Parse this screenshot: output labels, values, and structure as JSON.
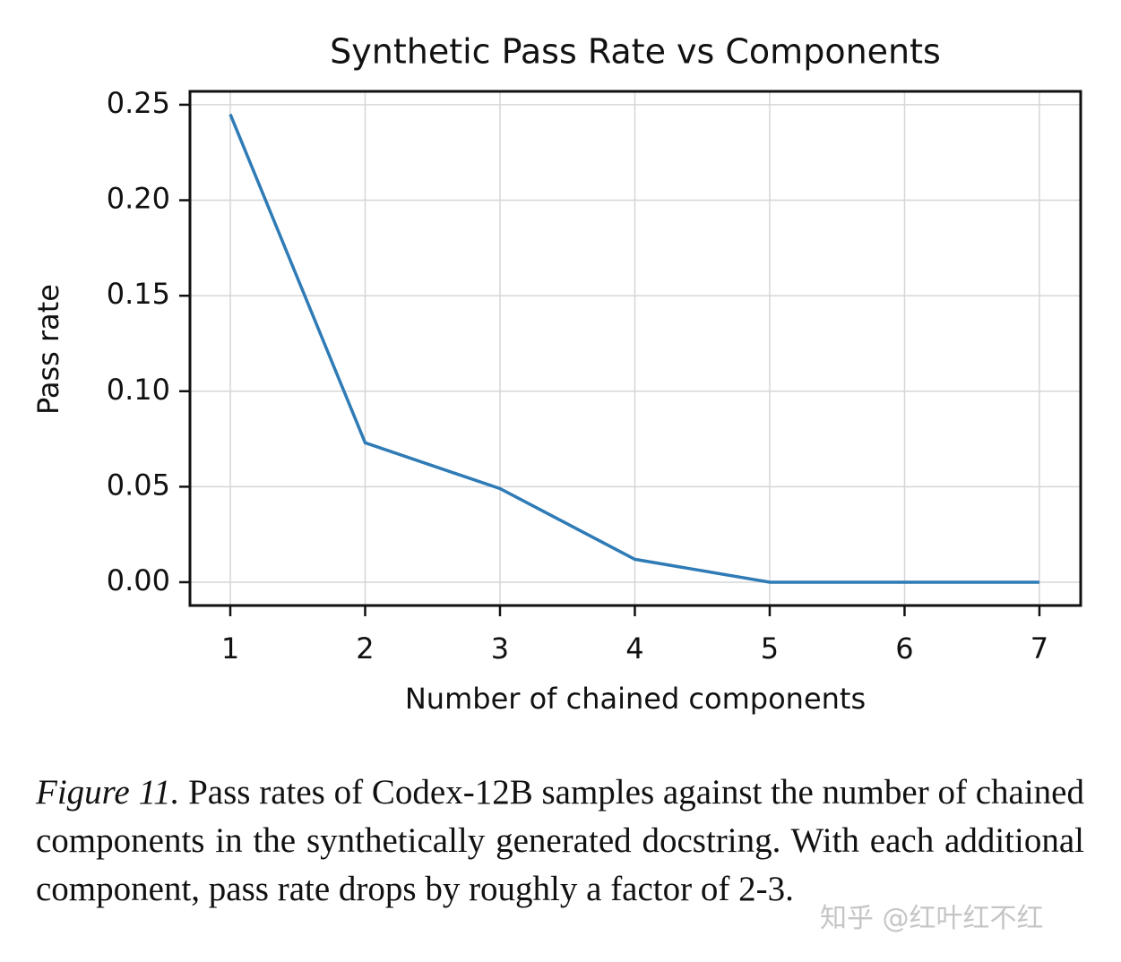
{
  "chart_data": {
    "type": "line",
    "title": "Synthetic Pass Rate vs Components",
    "xlabel": "Number of chained components",
    "ylabel": "Pass rate",
    "x": [
      1,
      2,
      3,
      4,
      5,
      6,
      7
    ],
    "series": [
      {
        "name": "Pass rate",
        "color": "#2f7bb6",
        "values": [
          0.245,
          0.073,
          0.049,
          0.012,
          0,
          0,
          0
        ]
      }
    ],
    "xlim": [
      0.701,
      7.306
    ],
    "xticks": [
      1,
      2,
      3,
      4,
      5,
      6,
      7
    ],
    "ylim": [
      -0.0122,
      0.257
    ],
    "yticks": [
      {
        "value": 0,
        "label": "0.00"
      },
      {
        "value": 0.05,
        "label": "0.05"
      },
      {
        "value": 0.1,
        "label": "0.10"
      },
      {
        "value": 0.15,
        "label": "0.15"
      },
      {
        "value": 0.2,
        "label": "0.20"
      },
      {
        "value": 0.25,
        "label": "0.25"
      }
    ],
    "grid": true
  },
  "caption": {
    "label": "Figure 11.",
    "text": "Pass rates of Codex-12B samples against the number of chained components in the synthetically generated docstring. With each additional component, pass rate drops by roughly a factor of 2-3."
  },
  "watermark": "知乎 @红叶红不红"
}
